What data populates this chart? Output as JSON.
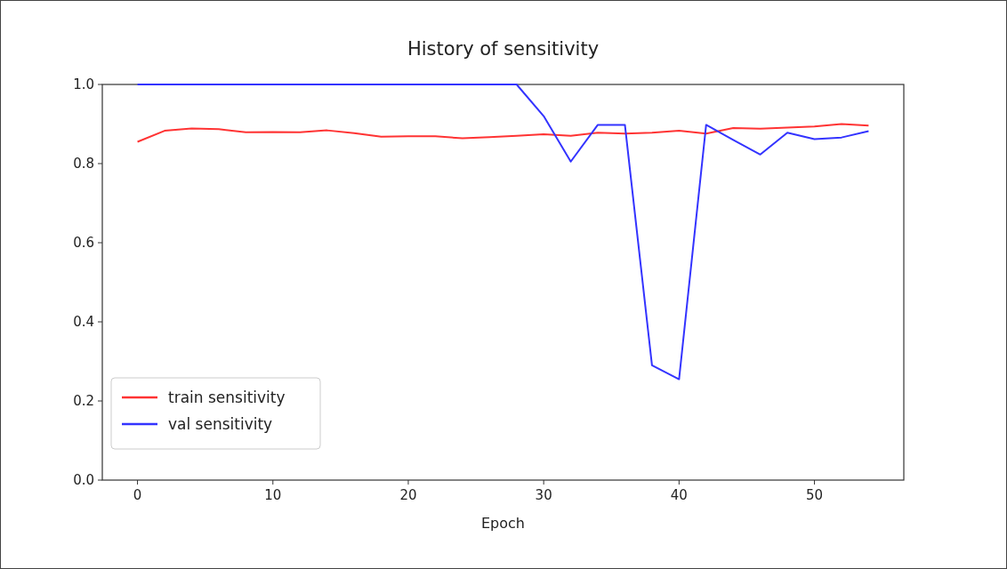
{
  "chart_data": {
    "type": "line",
    "title": "History of sensitivity",
    "xlabel": "Epoch",
    "x": [
      0,
      2,
      4,
      6,
      8,
      10,
      12,
      14,
      16,
      18,
      20,
      22,
      24,
      26,
      28,
      30,
      32,
      34,
      36,
      38,
      40,
      42,
      44,
      46,
      48,
      50,
      52,
      54
    ],
    "series": [
      {
        "name": "train sensitivity",
        "color": "#ff3333",
        "values": [
          0.855,
          0.883,
          0.889,
          0.887,
          0.879,
          0.88,
          0.879,
          0.884,
          0.877,
          0.868,
          0.869,
          0.869,
          0.864,
          0.867,
          0.87,
          0.874,
          0.87,
          0.878,
          0.876,
          0.878,
          0.883,
          0.876,
          0.89,
          0.888,
          0.891,
          0.894,
          0.9,
          0.896
        ]
      },
      {
        "name": "val sensitivity",
        "color": "#3333ff",
        "values": [
          1,
          1,
          1,
          1,
          1,
          1,
          1,
          1,
          1,
          1,
          1,
          1,
          1,
          1,
          1,
          0.92,
          0.805,
          0.898,
          0.898,
          0.29,
          0.255,
          0.898,
          0.86,
          0.823,
          0.878,
          0.862,
          0.866,
          0.882
        ]
      }
    ],
    "xlim": [
      -2.6,
      56.6
    ],
    "xticks": [
      0,
      10,
      20,
      30,
      40,
      50
    ],
    "ylim": [
      0,
      1
    ],
    "yticks": [
      {
        "value": 0,
        "label": "0.0"
      },
      {
        "value": 0.2,
        "label": "0.2"
      },
      {
        "value": 0.4,
        "label": "0.4"
      },
      {
        "value": 0.6,
        "label": "0.6"
      },
      {
        "value": 0.8,
        "label": "0.8"
      },
      {
        "value": 1,
        "label": "1.0"
      }
    ],
    "legend": "bottom left",
    "grid": false,
    "line_style": "solid",
    "marker": "none"
  }
}
